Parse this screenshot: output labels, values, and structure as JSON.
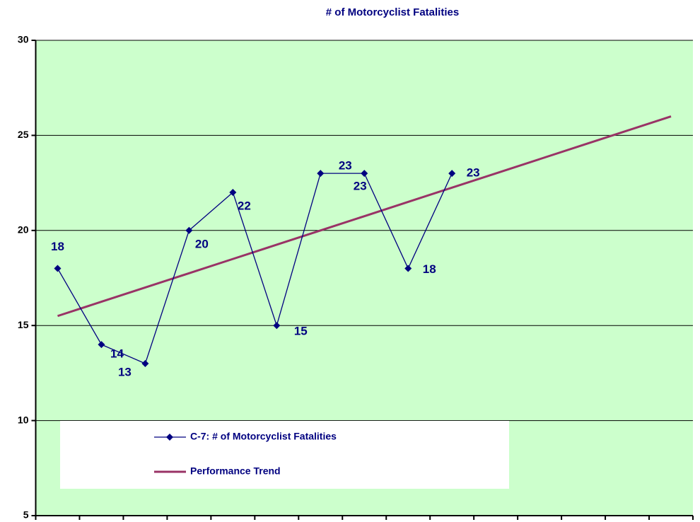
{
  "chart_data": {
    "type": "line",
    "title": "# of Motorcyclist Fatalities",
    "categories": [
      null,
      null,
      null,
      null,
      null,
      null,
      null,
      null,
      null,
      null,
      null,
      null,
      null,
      null,
      null
    ],
    "series": [
      {
        "name": "C-7: # of Motorcyclist Fatalities",
        "color": "#000080",
        "marker": "diamond",
        "data_labels": true,
        "values": [
          18,
          14,
          13,
          20,
          22,
          15,
          23,
          23,
          18,
          23,
          null,
          null,
          null,
          null,
          null
        ]
      },
      {
        "name": "Performance Trend",
        "color": "#993366",
        "marker": "none",
        "data_labels": false,
        "values": [
          15.5,
          16.25,
          17,
          17.75,
          18.5,
          19.25,
          20,
          20.75,
          21.5,
          22.25,
          23,
          23.75,
          24.5,
          25.25,
          26
        ]
      }
    ],
    "ylim": [
      5,
      30
    ],
    "yticks": [
      5,
      10,
      15,
      20,
      25,
      30
    ],
    "grid": true,
    "background": "#ccffcc",
    "legend": "lower left"
  }
}
